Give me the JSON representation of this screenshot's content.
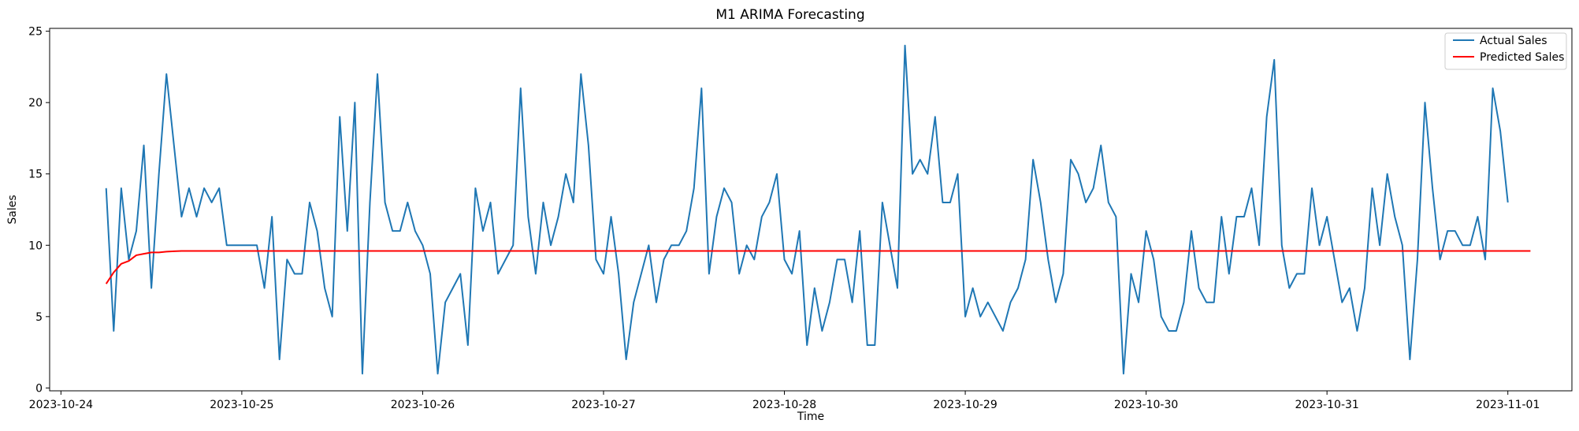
{
  "chart_data": {
    "type": "line",
    "title": "M1 ARIMA Forecasting",
    "xlabel": "Time",
    "ylabel": "Sales",
    "x_start": "2023-10-24T06:00",
    "x_step_hours": 1,
    "xlim": [
      "2023-10-23T22:30",
      "2023-11-01T08:30"
    ],
    "ylim": [
      -0.2,
      25.2
    ],
    "xticks": [
      "2023-10-24",
      "2023-10-25",
      "2023-10-26",
      "2023-10-27",
      "2023-10-28",
      "2023-10-29",
      "2023-10-30",
      "2023-10-31",
      "2023-11-01"
    ],
    "yticks": [
      0,
      5,
      10,
      15,
      20,
      25
    ],
    "grid": false,
    "legend_position": "top-right",
    "series": [
      {
        "name": "Actual Sales",
        "color": "#1f77b4",
        "values": [
          14,
          4,
          14,
          9,
          11,
          17,
          7,
          15,
          22,
          17,
          12,
          14,
          12,
          14,
          13,
          14,
          10,
          10,
          10,
          10,
          10,
          7,
          12,
          2,
          9,
          8,
          8,
          13,
          11,
          7,
          5,
          19,
          11,
          20,
          1,
          13,
          22,
          13,
          11,
          11,
          13,
          11,
          10,
          8,
          1,
          6,
          7,
          8,
          3,
          14,
          11,
          13,
          8,
          9,
          10,
          21,
          12,
          8,
          13,
          10,
          12,
          15,
          13,
          22,
          17,
          9,
          8,
          12,
          8,
          2,
          6,
          8,
          10,
          6,
          9,
          10,
          10,
          11,
          14,
          21,
          8,
          12,
          14,
          13,
          8,
          10,
          9,
          12,
          13,
          15,
          9,
          8,
          11,
          3,
          7,
          4,
          6,
          9,
          9,
          6,
          11,
          3,
          3,
          13,
          10,
          7,
          24,
          15,
          16,
          15,
          19,
          13,
          13,
          15,
          5,
          7,
          5,
          6,
          5,
          4,
          6,
          7,
          9,
          16,
          13,
          9,
          6,
          8,
          16,
          15,
          13,
          14,
          17,
          13,
          12,
          1,
          8,
          6,
          11,
          9,
          5,
          4,
          4,
          6,
          11,
          7,
          6,
          6,
          12,
          8,
          12,
          12,
          14,
          10,
          19,
          23,
          10,
          7,
          8,
          8,
          14,
          10,
          12,
          9,
          6,
          7,
          4,
          7,
          14,
          10,
          15,
          12,
          10,
          2,
          9,
          20,
          14,
          9,
          11,
          11,
          10,
          10,
          12,
          9,
          21,
          18,
          13
        ]
      },
      {
        "name": "Predicted Sales",
        "color": "#ff0000",
        "values": [
          7.3,
          8.1,
          8.7,
          8.9,
          9.3,
          9.4,
          9.5,
          9.5,
          9.55,
          9.58,
          9.6,
          9.6,
          9.6,
          9.6,
          9.6,
          9.6,
          9.6,
          9.6,
          9.6,
          9.6,
          9.6,
          9.6,
          9.6,
          9.6,
          9.6,
          9.6,
          9.6,
          9.6,
          9.6,
          9.6,
          9.6,
          9.6,
          9.6,
          9.6,
          9.6,
          9.6,
          9.6,
          9.6,
          9.6,
          9.6,
          9.6,
          9.6,
          9.6,
          9.6,
          9.6,
          9.6,
          9.6,
          9.6,
          9.6,
          9.6,
          9.6,
          9.6,
          9.6,
          9.6,
          9.6,
          9.6,
          9.6,
          9.6,
          9.6,
          9.6,
          9.6,
          9.6,
          9.6,
          9.6,
          9.6,
          9.6,
          9.6,
          9.6,
          9.6,
          9.6,
          9.6,
          9.6,
          9.6,
          9.6,
          9.6,
          9.6,
          9.6,
          9.6,
          9.6,
          9.6,
          9.6,
          9.6,
          9.6,
          9.6,
          9.6,
          9.6,
          9.6,
          9.6,
          9.6,
          9.6,
          9.6,
          9.6,
          9.6,
          9.6,
          9.6,
          9.6,
          9.6,
          9.6,
          9.6,
          9.6,
          9.6,
          9.6,
          9.6,
          9.6,
          9.6,
          9.6,
          9.6,
          9.6,
          9.6,
          9.6,
          9.6,
          9.6,
          9.6,
          9.6,
          9.6,
          9.6,
          9.6,
          9.6,
          9.6,
          9.6,
          9.6,
          9.6,
          9.6,
          9.6,
          9.6,
          9.6,
          9.6,
          9.6,
          9.6,
          9.6,
          9.6,
          9.6,
          9.6,
          9.6,
          9.6,
          9.6,
          9.6,
          9.6,
          9.6,
          9.6,
          9.6,
          9.6,
          9.6,
          9.6,
          9.6,
          9.6,
          9.6,
          9.6,
          9.6,
          9.6,
          9.6,
          9.6,
          9.6,
          9.6,
          9.6,
          9.6,
          9.6,
          9.6,
          9.6,
          9.6,
          9.6,
          9.6,
          9.6,
          9.6,
          9.6,
          9.6,
          9.6,
          9.6,
          9.6,
          9.6,
          9.6,
          9.6,
          9.6,
          9.6,
          9.6,
          9.6,
          9.6,
          9.6,
          9.6,
          9.6,
          9.6,
          9.6,
          9.6,
          9.6,
          9.6,
          9.6,
          9.6,
          9.6,
          9.6,
          9.6
        ]
      }
    ]
  }
}
